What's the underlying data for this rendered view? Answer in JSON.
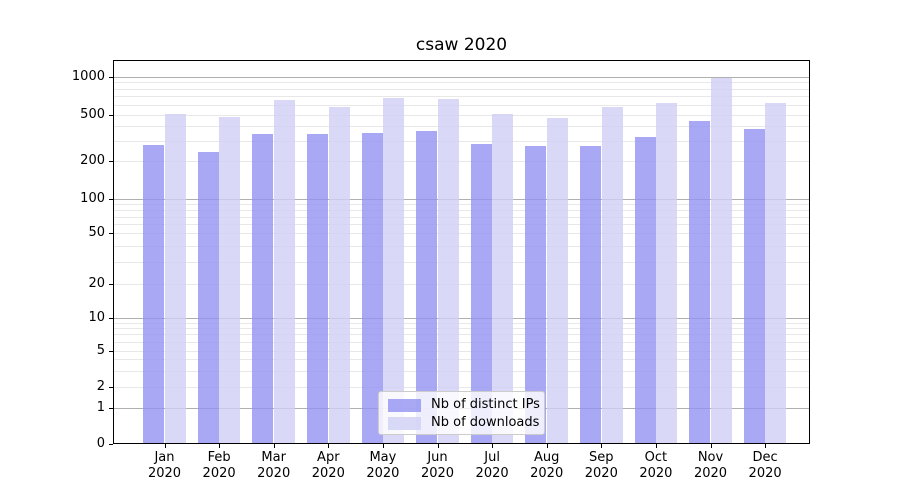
{
  "chart_data": {
    "type": "bar",
    "title": "csaw 2020",
    "categories": [
      "Jan 2020",
      "Feb 2020",
      "Mar 2020",
      "Apr 2020",
      "May 2020",
      "Jun 2020",
      "Jul 2020",
      "Aug 2020",
      "Sep 2020",
      "Oct 2020",
      "Nov 2020",
      "Dec 2020"
    ],
    "x_months": [
      "Jan",
      "Feb",
      "Mar",
      "Apr",
      "May",
      "Jun",
      "Jul",
      "Aug",
      "Sep",
      "Oct",
      "Nov",
      "Dec"
    ],
    "x_year": "2020",
    "series": [
      {
        "name": "Nb of distinct IPs",
        "key": "ips",
        "color": "rgba(146,146,243,0.8)",
        "approx_hex": "#a8a8f3",
        "values": [
          275,
          240,
          345,
          340,
          350,
          360,
          280,
          270,
          270,
          320,
          445,
          375
        ]
      },
      {
        "name": "Nb of downloads",
        "key": "downloads",
        "color": "rgba(208,208,245,0.8)",
        "approx_hex": "#d9d9f7",
        "values": [
          505,
          475,
          650,
          580,
          680,
          665,
          505,
          470,
          580,
          615,
          985,
          625
        ]
      }
    ],
    "yscale": "symlog",
    "y_ticks": [
      0,
      1,
      2,
      5,
      10,
      20,
      50,
      100,
      200,
      500,
      1000
    ],
    "ylim": [
      0,
      1400
    ],
    "grid": "horizontal, major at powers of 10, log minors elsewhere",
    "legend_position": "inside lower-center",
    "colors": {
      "grid_major": "#b0b0b0",
      "grid_minor": "#e8e8e8",
      "spine": "#000000",
      "text": "#000000",
      "background": "#ffffff"
    }
  }
}
